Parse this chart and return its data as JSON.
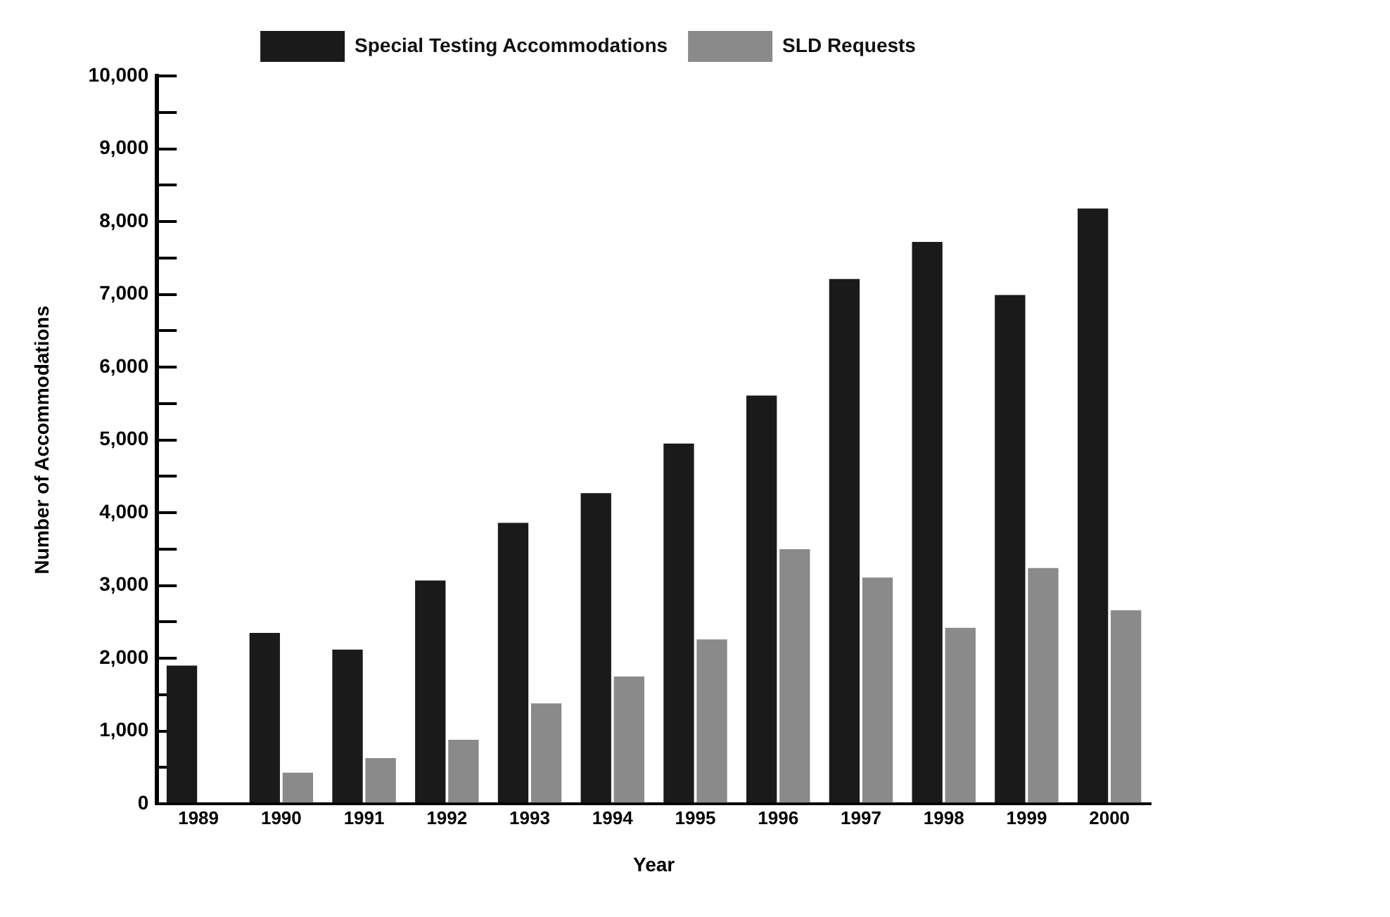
{
  "chart_data": {
    "type": "bar",
    "xlabel": "Year",
    "ylabel": "Number of Accommodations",
    "categories": [
      "1989",
      "1990",
      "1991",
      "1992",
      "1993",
      "1994",
      "1995",
      "1996",
      "1997",
      "1998",
      "1999",
      "2000"
    ],
    "series": [
      {
        "name": "Special Testing Accommodations",
        "color": "#1a1a1a",
        "values": [
          1900,
          2350,
          2120,
          3070,
          3860,
          4270,
          4950,
          5610,
          7210,
          7720,
          6990,
          8180
        ]
      },
      {
        "name": "SLD Requests",
        "color": "#8a8a8a",
        "values": [
          null,
          430,
          630,
          880,
          1380,
          1750,
          2260,
          3500,
          3110,
          2420,
          3240,
          2660
        ]
      }
    ],
    "ylim": [
      0,
      10000
    ],
    "yticks": [
      0,
      {
        "value": 500,
        "label": null
      },
      {
        "value": 1000,
        "label": "1,000"
      },
      {
        "value": 1500,
        "label": null
      },
      {
        "value": 2000,
        "label": "2,000"
      },
      {
        "value": 2500,
        "label": null
      },
      {
        "value": 3000,
        "label": "3,000"
      },
      {
        "value": 3500,
        "label": null
      },
      {
        "value": 4000,
        "label": "4,000"
      },
      {
        "value": 4500,
        "label": null
      },
      {
        "value": 5000,
        "label": "5,000"
      },
      {
        "value": 5500,
        "label": null
      },
      {
        "value": 6000,
        "label": "6,000"
      },
      {
        "value": 6500,
        "label": null
      },
      {
        "value": 7000,
        "label": "7,000"
      },
      {
        "value": 7500,
        "label": null
      },
      {
        "value": 8000,
        "label": "8,000"
      },
      {
        "value": 8500,
        "label": null
      },
      {
        "value": 9000,
        "label": "9,000"
      },
      {
        "value": 9500,
        "label": null
      },
      {
        "value": 10000,
        "label": "10,000"
      }
    ],
    "grid": false,
    "legend": "top"
  }
}
